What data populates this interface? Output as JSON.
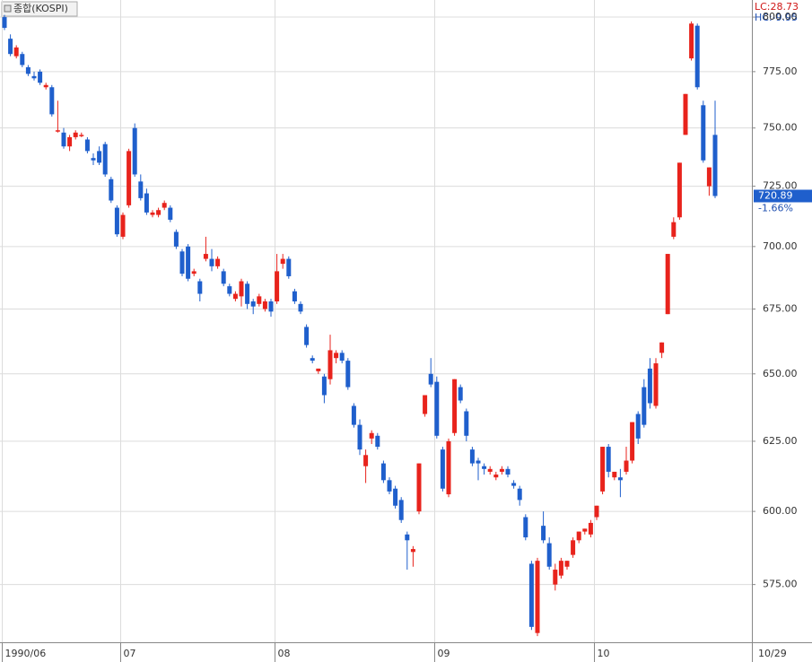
{
  "chart_data": {
    "type": "candlestick",
    "title": "종합(KOSPI)",
    "lc_label": "LC:28.73",
    "hc_label": "HC:-9.95",
    "last_value": 720.89,
    "last_change_label": "-1.66%",
    "last_date": "10/29",
    "up_color": "#e8231c",
    "down_color": "#1f5fcc",
    "log_scale": true,
    "grid": true,
    "ylim": [
      556,
      808
    ],
    "yticks": [
      {
        "value": 575,
        "label": "575.00"
      },
      {
        "value": 600,
        "label": "600.00"
      },
      {
        "value": 625,
        "label": "625.00"
      },
      {
        "value": 650,
        "label": "650.00"
      },
      {
        "value": 675,
        "label": "675.00"
      },
      {
        "value": 700,
        "label": "700.00"
      },
      {
        "value": 725,
        "label": "725.00"
      },
      {
        "value": 750,
        "label": "750.00"
      },
      {
        "value": 775,
        "label": "775.00"
      },
      {
        "value": 800,
        "label": "800.00"
      }
    ],
    "categories": [
      "1990/06",
      null,
      null,
      null,
      null,
      null,
      null,
      null,
      null,
      null,
      null,
      null,
      null,
      null,
      null,
      null,
      null,
      null,
      null,
      null,
      "07",
      null,
      null,
      null,
      null,
      null,
      null,
      null,
      null,
      null,
      null,
      null,
      null,
      null,
      null,
      null,
      null,
      null,
      null,
      null,
      null,
      null,
      null,
      null,
      null,
      null,
      "08",
      null,
      null,
      null,
      null,
      null,
      null,
      null,
      null,
      null,
      null,
      null,
      null,
      null,
      null,
      null,
      null,
      null,
      null,
      null,
      null,
      null,
      null,
      null,
      null,
      null,
      null,
      "09",
      null,
      null,
      null,
      null,
      null,
      null,
      null,
      null,
      null,
      null,
      null,
      null,
      null,
      null,
      null,
      null,
      null,
      null,
      null,
      null,
      null,
      null,
      null,
      null,
      null,
      null,
      "10",
      null,
      null,
      null,
      null,
      null,
      null,
      null,
      null,
      null,
      null,
      null,
      null,
      null,
      null,
      null,
      null,
      null,
      null,
      null,
      null
    ],
    "open": [
      800,
      790,
      782,
      783,
      777,
      773,
      775,
      768,
      768,
      749,
      748,
      742,
      746,
      747,
      745,
      737,
      740,
      743,
      728,
      716,
      704,
      717,
      750,
      727,
      722,
      713,
      713,
      716,
      716,
      706,
      698,
      700,
      689,
      686,
      695,
      695,
      692,
      690,
      684,
      679,
      680,
      685,
      678,
      677,
      675,
      678,
      678,
      693,
      695,
      682,
      677,
      668,
      656,
      651,
      649,
      648,
      656,
      658,
      655,
      638,
      631,
      616,
      626,
      627,
      617,
      611,
      608,
      604,
      592,
      586,
      600,
      635,
      650,
      647,
      622,
      606,
      628,
      645,
      636,
      622,
      618,
      616,
      614,
      612,
      614,
      615,
      610,
      608,
      598,
      582,
      559,
      595,
      589,
      575,
      578,
      581,
      585,
      590,
      593,
      592,
      598,
      607,
      623,
      612,
      612,
      614,
      618,
      635,
      645,
      652,
      638,
      658,
      673,
      704,
      712,
      747,
      781,
      796,
      760,
      725,
      747
    ],
    "high": [
      801,
      792,
      787,
      784,
      778,
      775,
      776,
      770,
      769,
      762,
      750,
      747,
      749,
      748,
      746,
      739,
      742,
      744,
      729,
      717,
      714,
      741,
      752,
      730,
      724,
      715,
      716,
      719,
      717,
      707,
      699,
      701,
      691,
      687,
      704,
      699,
      696,
      691,
      685,
      682,
      687,
      686,
      679,
      681,
      679,
      679,
      697,
      697,
      696,
      683,
      678,
      669,
      657,
      652,
      650,
      665,
      659,
      659,
      656,
      639,
      633,
      622,
      629,
      628,
      618,
      612,
      609,
      605,
      593,
      588,
      617,
      642,
      656,
      649,
      623,
      626,
      648,
      646,
      637,
      623,
      619,
      617,
      616,
      614,
      616,
      616,
      611,
      609,
      599,
      583,
      584,
      600,
      591,
      582,
      584,
      583,
      591,
      593,
      594,
      597,
      602,
      623,
      624,
      614,
      615,
      623,
      632,
      636,
      648,
      656,
      656,
      662,
      697,
      712,
      735,
      765,
      798,
      797,
      762,
      733,
      762
    ],
    "low": [
      794,
      782,
      781,
      777,
      773,
      771,
      769,
      767,
      755,
      748,
      741,
      740,
      745,
      746,
      739,
      734,
      734,
      729,
      718,
      704,
      703,
      716,
      729,
      719,
      713,
      712,
      712,
      715,
      710,
      699,
      688,
      686,
      688,
      678,
      694,
      690,
      691,
      684,
      680,
      678,
      676,
      675,
      673,
      676,
      674,
      672,
      677,
      691,
      687,
      677,
      673,
      660,
      654,
      650,
      639,
      646,
      654,
      654,
      644,
      630,
      620,
      610,
      624,
      622,
      610,
      606,
      601,
      596,
      580,
      581,
      599,
      634,
      645,
      626,
      607,
      605,
      627,
      639,
      625,
      616,
      611,
      613,
      613,
      611,
      613,
      612,
      608,
      602,
      590,
      560,
      558,
      589,
      580,
      573,
      577,
      580,
      584,
      589,
      592,
      591,
      597,
      606,
      612,
      611,
      605,
      613,
      617,
      624,
      630,
      637,
      637,
      656,
      673,
      703,
      711,
      747,
      780,
      767,
      735,
      721,
      720
    ],
    "close": [
      795,
      783,
      786,
      778,
      774,
      772,
      770,
      769,
      756,
      749,
      742,
      746,
      748,
      747,
      740,
      736,
      735,
      730,
      719,
      705,
      713,
      740,
      730,
      720,
      714,
      714,
      715,
      718,
      711,
      700,
      689,
      687,
      690,
      681,
      697,
      692,
      695,
      685,
      681,
      681,
      686,
      677,
      676,
      680,
      678,
      674,
      690,
      695,
      688,
      678,
      674,
      661,
      655,
      652,
      642,
      659,
      658,
      655,
      645,
      631,
      622,
      620,
      628,
      623,
      611,
      607,
      602,
      597,
      590,
      587,
      617,
      642,
      646,
      627,
      608,
      625,
      648,
      640,
      627,
      617,
      617,
      615,
      615,
      613,
      615,
      613,
      609,
      604,
      591,
      561,
      583,
      590,
      581,
      580,
      583,
      583,
      590,
      593,
      594,
      596,
      602,
      623,
      614,
      614,
      611,
      618,
      632,
      626,
      631,
      639,
      654,
      662,
      697,
      710,
      735,
      765,
      797,
      768,
      736,
      733,
      720.89
    ]
  }
}
